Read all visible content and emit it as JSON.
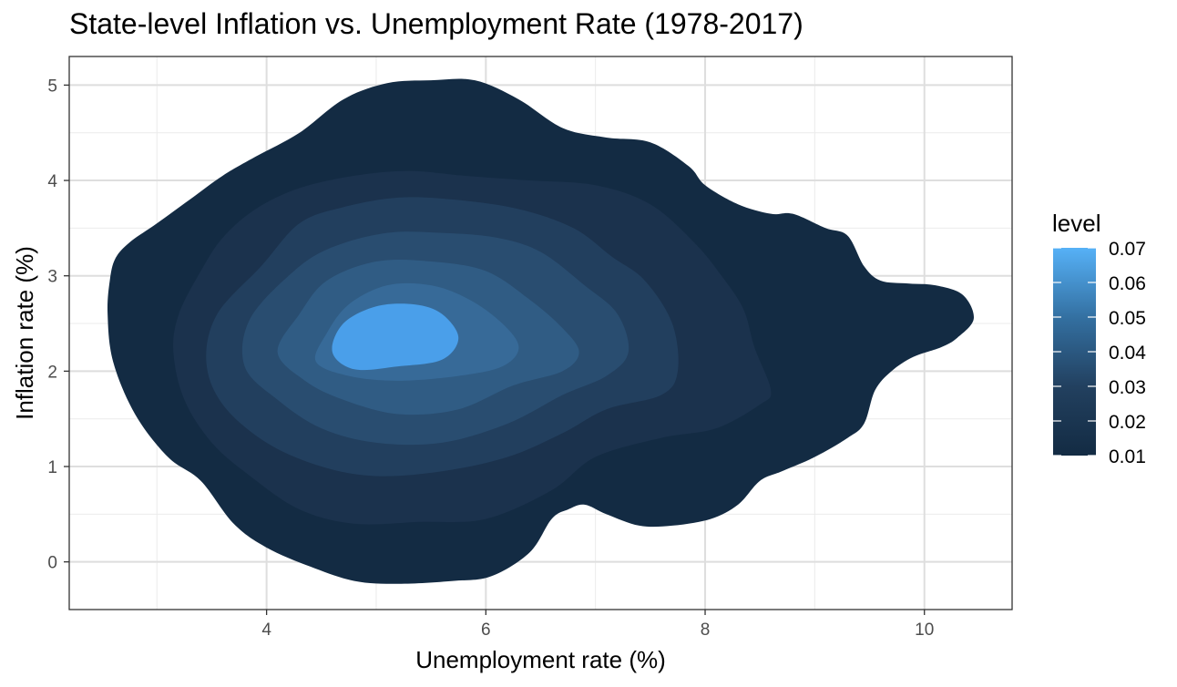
{
  "chart_data": {
    "type": "density_contour_filled",
    "title": "State-level Inflation vs. Unemployment Rate (1978-2017)",
    "xlabel": "Unemployment rate (%)",
    "ylabel": "Inflation rate (%)",
    "xlim": [
      2.2,
      10.8
    ],
    "ylim": [
      -0.5,
      5.3
    ],
    "x_ticks": [
      4,
      6,
      8,
      10
    ],
    "x_tick_labels": [
      "4",
      "6",
      "8",
      "10"
    ],
    "y_ticks": [
      0,
      1,
      2,
      3,
      4,
      5
    ],
    "y_tick_labels": [
      "0",
      "1",
      "2",
      "3",
      "4",
      "5"
    ],
    "grid": true,
    "legend": {
      "title": "level",
      "position": "right",
      "labels": [
        "0.07",
        "0.06",
        "0.05",
        "0.04",
        "0.03",
        "0.02",
        "0.01"
      ]
    },
    "level_colors": [
      "#132B43",
      "#1B324D",
      "#223F5E",
      "#294D70",
      "#305C84",
      "#376A98",
      "#4A9FEA"
    ],
    "contour_levels": [
      {
        "level": "0.01",
        "polygon": [
          [
            2.62,
            3.18
          ],
          [
            2.75,
            3.35
          ],
          [
            3.0,
            3.55
          ],
          [
            3.3,
            3.8
          ],
          [
            3.6,
            4.05
          ],
          [
            3.9,
            4.25
          ],
          [
            4.3,
            4.5
          ],
          [
            4.7,
            4.85
          ],
          [
            5.1,
            5.02
          ],
          [
            5.5,
            5.05
          ],
          [
            5.9,
            5.05
          ],
          [
            6.3,
            4.85
          ],
          [
            6.7,
            4.55
          ],
          [
            7.1,
            4.45
          ],
          [
            7.5,
            4.4
          ],
          [
            7.85,
            4.15
          ],
          [
            8.0,
            3.95
          ],
          [
            8.3,
            3.75
          ],
          [
            8.6,
            3.65
          ],
          [
            8.8,
            3.65
          ],
          [
            9.1,
            3.5
          ],
          [
            9.3,
            3.42
          ],
          [
            9.45,
            3.1
          ],
          [
            9.6,
            2.95
          ],
          [
            9.85,
            2.92
          ],
          [
            10.1,
            2.9
          ],
          [
            10.35,
            2.8
          ],
          [
            10.45,
            2.55
          ],
          [
            10.3,
            2.35
          ],
          [
            10.15,
            2.25
          ],
          [
            9.9,
            2.15
          ],
          [
            9.7,
            2.0
          ],
          [
            9.55,
            1.8
          ],
          [
            9.45,
            1.45
          ],
          [
            9.3,
            1.3
          ],
          [
            9.0,
            1.1
          ],
          [
            8.7,
            0.95
          ],
          [
            8.5,
            0.85
          ],
          [
            8.3,
            0.6
          ],
          [
            8.05,
            0.45
          ],
          [
            7.7,
            0.38
          ],
          [
            7.4,
            0.38
          ],
          [
            7.1,
            0.5
          ],
          [
            6.9,
            0.6
          ],
          [
            6.75,
            0.55
          ],
          [
            6.6,
            0.45
          ],
          [
            6.4,
            0.1
          ],
          [
            6.05,
            -0.15
          ],
          [
            5.7,
            -0.2
          ],
          [
            5.2,
            -0.23
          ],
          [
            4.8,
            -0.2
          ],
          [
            4.4,
            -0.05
          ],
          [
            4.0,
            0.15
          ],
          [
            3.7,
            0.4
          ],
          [
            3.4,
            0.85
          ],
          [
            3.1,
            1.1
          ],
          [
            2.8,
            1.55
          ],
          [
            2.6,
            2.1
          ],
          [
            2.55,
            2.6
          ],
          [
            2.57,
            2.95
          ]
        ]
      },
      {
        "level": "0.02",
        "polygon": [
          [
            3.4,
            3.05
          ],
          [
            3.6,
            3.4
          ],
          [
            3.9,
            3.7
          ],
          [
            4.3,
            3.92
          ],
          [
            4.8,
            4.05
          ],
          [
            5.3,
            4.1
          ],
          [
            5.8,
            4.05
          ],
          [
            6.4,
            4.0
          ],
          [
            7.0,
            3.95
          ],
          [
            7.5,
            3.75
          ],
          [
            7.9,
            3.35
          ],
          [
            8.15,
            3.0
          ],
          [
            8.35,
            2.65
          ],
          [
            8.45,
            2.25
          ],
          [
            8.6,
            1.8
          ],
          [
            8.5,
            1.65
          ],
          [
            8.1,
            1.4
          ],
          [
            7.6,
            1.3
          ],
          [
            7.0,
            1.1
          ],
          [
            6.6,
            0.75
          ],
          [
            6.0,
            0.45
          ],
          [
            5.4,
            0.42
          ],
          [
            4.8,
            0.4
          ],
          [
            4.3,
            0.55
          ],
          [
            3.85,
            0.9
          ],
          [
            3.5,
            1.25
          ],
          [
            3.25,
            1.7
          ],
          [
            3.15,
            2.2
          ],
          [
            3.2,
            2.6
          ]
        ]
      },
      {
        "level": "0.03",
        "polygon": [
          [
            3.95,
            3.1
          ],
          [
            4.3,
            3.55
          ],
          [
            4.7,
            3.72
          ],
          [
            5.2,
            3.82
          ],
          [
            5.7,
            3.8
          ],
          [
            6.3,
            3.7
          ],
          [
            6.8,
            3.5
          ],
          [
            7.15,
            3.2
          ],
          [
            7.45,
            2.95
          ],
          [
            7.7,
            2.5
          ],
          [
            7.75,
            2.0
          ],
          [
            7.6,
            1.75
          ],
          [
            7.1,
            1.6
          ],
          [
            6.7,
            1.35
          ],
          [
            6.2,
            1.1
          ],
          [
            5.6,
            0.95
          ],
          [
            5.0,
            0.9
          ],
          [
            4.5,
            1.0
          ],
          [
            4.0,
            1.25
          ],
          [
            3.6,
            1.65
          ],
          [
            3.45,
            2.1
          ],
          [
            3.55,
            2.6
          ]
        ]
      },
      {
        "level": "0.04",
        "polygon": [
          [
            4.25,
            3.05
          ],
          [
            4.6,
            3.3
          ],
          [
            5.1,
            3.45
          ],
          [
            5.6,
            3.45
          ],
          [
            6.1,
            3.4
          ],
          [
            6.5,
            3.25
          ],
          [
            6.9,
            2.9
          ],
          [
            7.2,
            2.6
          ],
          [
            7.3,
            2.2
          ],
          [
            7.1,
            1.95
          ],
          [
            6.7,
            1.75
          ],
          [
            6.2,
            1.45
          ],
          [
            5.6,
            1.25
          ],
          [
            5.0,
            1.25
          ],
          [
            4.5,
            1.4
          ],
          [
            4.1,
            1.7
          ],
          [
            3.8,
            2.05
          ],
          [
            3.85,
            2.55
          ]
        ]
      },
      {
        "level": "0.05",
        "polygon": [
          [
            4.55,
            2.95
          ],
          [
            5.0,
            3.15
          ],
          [
            5.5,
            3.15
          ],
          [
            6.0,
            3.05
          ],
          [
            6.4,
            2.75
          ],
          [
            6.7,
            2.45
          ],
          [
            6.85,
            2.2
          ],
          [
            6.7,
            2.0
          ],
          [
            6.25,
            1.85
          ],
          [
            5.75,
            1.6
          ],
          [
            5.2,
            1.55
          ],
          [
            4.7,
            1.7
          ],
          [
            4.35,
            1.9
          ],
          [
            4.1,
            2.2
          ],
          [
            4.3,
            2.6
          ]
        ]
      },
      {
        "level": "0.06",
        "polygon": [
          [
            4.75,
            2.7
          ],
          [
            5.1,
            2.9
          ],
          [
            5.5,
            2.9
          ],
          [
            5.85,
            2.75
          ],
          [
            6.15,
            2.5
          ],
          [
            6.3,
            2.25
          ],
          [
            6.15,
            2.05
          ],
          [
            5.75,
            1.95
          ],
          [
            5.2,
            1.9
          ],
          [
            4.75,
            1.95
          ],
          [
            4.45,
            2.1
          ],
          [
            4.55,
            2.4
          ]
        ]
      },
      {
        "level": "0.07",
        "polygon": [
          [
            4.7,
            2.5
          ],
          [
            5.0,
            2.68
          ],
          [
            5.35,
            2.7
          ],
          [
            5.6,
            2.6
          ],
          [
            5.75,
            2.35
          ],
          [
            5.6,
            2.12
          ],
          [
            5.2,
            2.05
          ],
          [
            4.8,
            2.02
          ],
          [
            4.6,
            2.2
          ]
        ]
      }
    ]
  }
}
